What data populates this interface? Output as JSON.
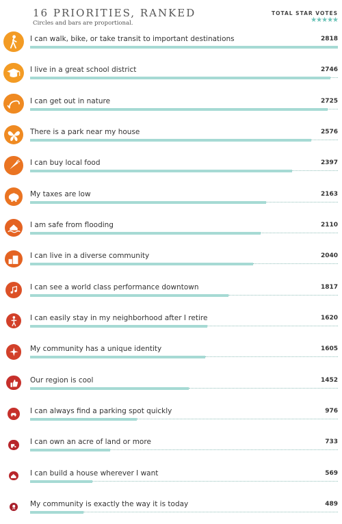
{
  "header": {
    "title": "16 PRIORITIES, RANKED",
    "subtitle": "Circles and bars are proportional.",
    "votes_label": "TOTAL STAR VOTES",
    "votes_stars": "★★★★★"
  },
  "colors": {
    "bar": "#a6dad4",
    "dots": "#8fbfb9",
    "circle_scale": [
      "#f39b24",
      "#ef8a22",
      "#ea7422",
      "#e46322",
      "#dc5127",
      "#d2402a",
      "#c6302b",
      "#b8262b",
      "#a81f2b"
    ]
  },
  "chart_data": {
    "type": "bar",
    "orientation": "horizontal",
    "categories": [
      "I can walk, bike, or take transit to important destinations",
      "I live in a great school district",
      "I can get out in nature",
      "There is a park near my house",
      "I can buy local food",
      "My taxes are low",
      "I am safe from flooding",
      "I can live in a diverse community",
      "I can see a world class performance downtown",
      "I can easily stay in my neighborhood after I retire",
      "My community has a unique identity",
      "Our region is cool",
      "I can always find a parking spot quickly",
      "I can own an acre of land or more",
      "I can build a house wherever I want",
      "My community is exactly the way it is today"
    ],
    "values": [
      2818,
      2746,
      2725,
      2576,
      2397,
      2163,
      2110,
      2040,
      1817,
      1620,
      1605,
      1452,
      976,
      733,
      569,
      489
    ],
    "icons": [
      "pedestrian-icon",
      "graduation-cap-icon",
      "fishing-hook-icon",
      "butterfly-icon",
      "carrot-icon",
      "piggy-bank-icon",
      "flooded-house-icon",
      "city-buildings-icon",
      "music-notes-icon",
      "elderly-person-icon",
      "star-burst-icon",
      "thumbs-up-icon",
      "car-parking-icon",
      "tractor-icon",
      "house-icon",
      "ribbon-icon"
    ],
    "title": "16 PRIORITIES, RANKED",
    "xlim": [
      0,
      2818
    ]
  }
}
